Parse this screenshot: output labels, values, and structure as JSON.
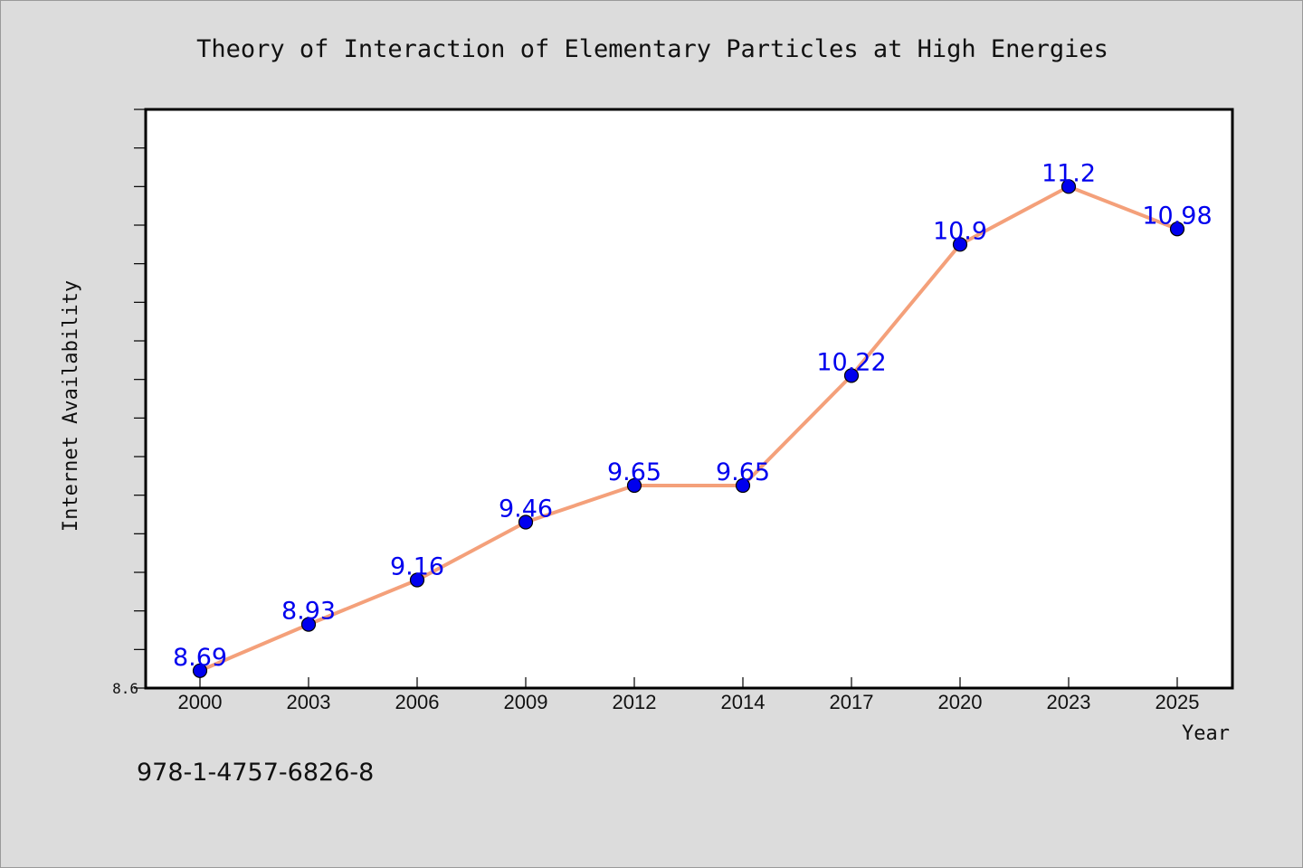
{
  "chart_data": {
    "type": "line",
    "title": "Theory of Interaction of Elementary Particles at High Energies",
    "xlabel": "Year",
    "ylabel": "Internet Availability",
    "categories": [
      "2000",
      "2003",
      "2006",
      "2009",
      "2012",
      "2014",
      "2017",
      "2020",
      "2023",
      "2025"
    ],
    "series": [
      {
        "values": [
          8.69,
          8.93,
          9.16,
          9.46,
          9.65,
          9.65,
          10.22,
          10.9,
          11.2,
          10.98
        ],
        "color": "#f4a07a",
        "marker_color": "#0000ee"
      }
    ],
    "ylim": [
      8.6,
      11.6
    ],
    "y_min_tick_label": "8.6",
    "grid": false,
    "legend": "none"
  },
  "footer": {
    "isbn": "978-1-4757-6826-8"
  }
}
